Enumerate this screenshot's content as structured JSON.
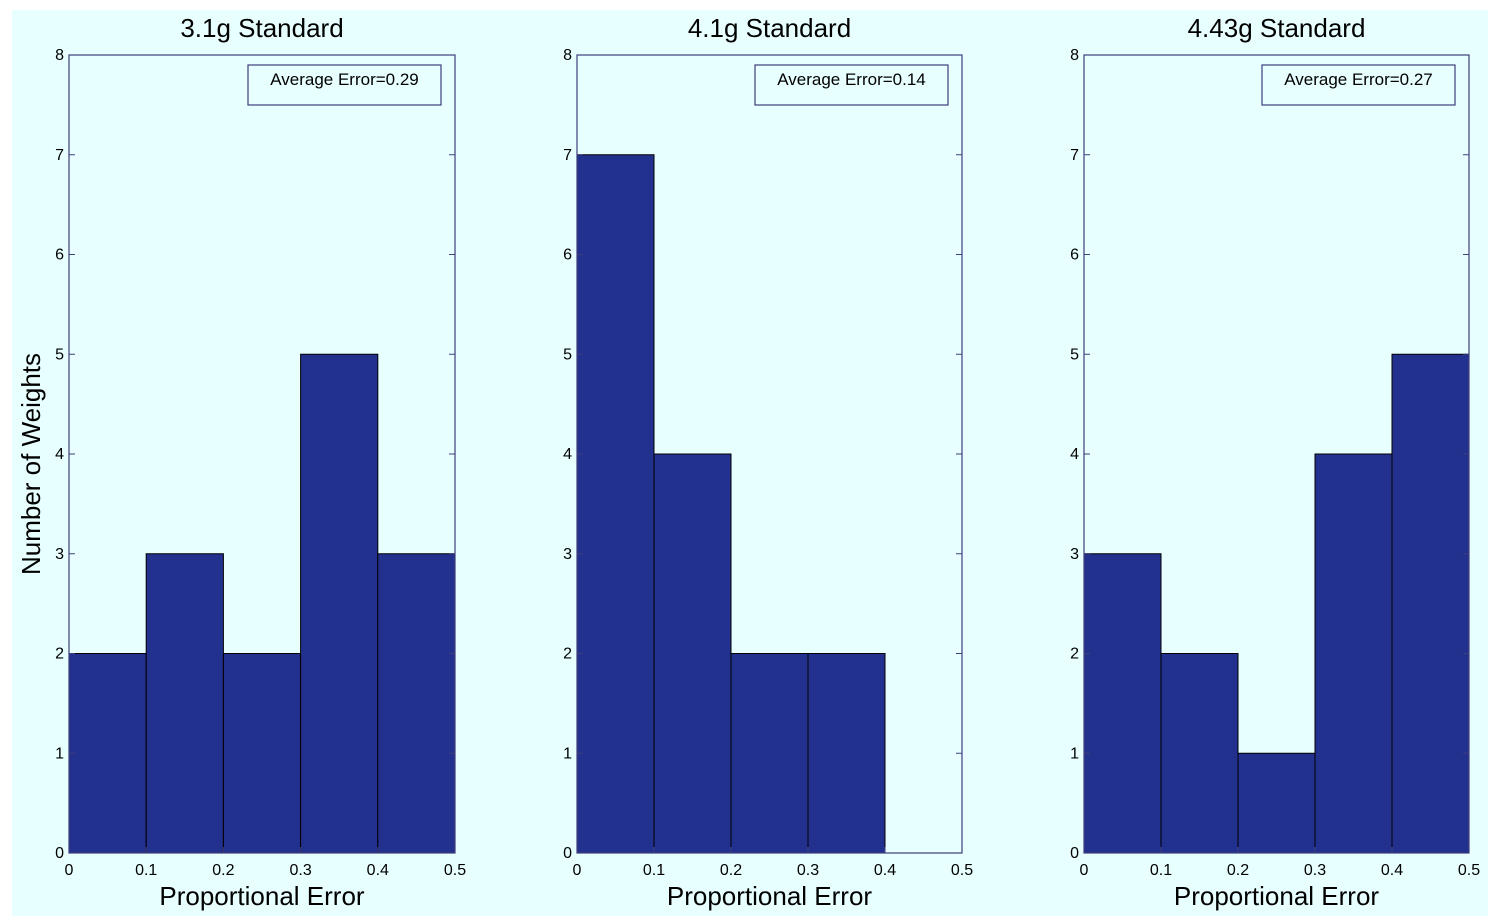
{
  "figure": {
    "shared_ylabel": "Number of Weights",
    "colors": {
      "figure_background": "#e8ffff",
      "bar_fill": "#23318e",
      "bar_edge": "#000000",
      "axis": "#3e3e7a",
      "annotation_box": "#3e3e7a"
    }
  },
  "chart_data": [
    {
      "type": "bar",
      "title": "3.1g Standard",
      "xlabel": "Proportional Error",
      "ylabel": "Number of Weights",
      "bin_edges": [
        0,
        0.1,
        0.2,
        0.3,
        0.4,
        0.5
      ],
      "values": [
        2,
        3,
        2,
        5,
        3
      ],
      "xlim": [
        0,
        0.5
      ],
      "ylim": [
        0,
        8
      ],
      "xticks": [
        "0",
        "0.1",
        "0.2",
        "0.3",
        "0.4",
        "0.5"
      ],
      "yticks": [
        "0",
        "1",
        "2",
        "3",
        "4",
        "5",
        "6",
        "7",
        "8"
      ],
      "annotation": "Average Error=0.29",
      "annotation_placement": "top-right",
      "grid": false
    },
    {
      "type": "bar",
      "title": "4.1g Standard",
      "xlabel": "Proportional Error",
      "ylabel": "",
      "bin_edges": [
        0,
        0.1,
        0.2,
        0.3,
        0.4,
        0.5
      ],
      "values": [
        7,
        4,
        2,
        2,
        0
      ],
      "xlim": [
        0,
        0.5
      ],
      "ylim": [
        0,
        8
      ],
      "xticks": [
        "0",
        "0.1",
        "0.2",
        "0.3",
        "0.4",
        "0.5"
      ],
      "yticks": [
        "0",
        "1",
        "2",
        "3",
        "4",
        "5",
        "6",
        "7",
        "8"
      ],
      "annotation": "Average Error=0.14",
      "annotation_placement": "top-right",
      "grid": false
    },
    {
      "type": "bar",
      "title": "4.43g Standard",
      "xlabel": "Proportional Error",
      "ylabel": "",
      "bin_edges": [
        0,
        0.1,
        0.2,
        0.3,
        0.4,
        0.5
      ],
      "values": [
        3,
        2,
        1,
        4,
        5
      ],
      "xlim": [
        0,
        0.5
      ],
      "ylim": [
        0,
        8
      ],
      "xticks": [
        "0",
        "0.1",
        "0.2",
        "0.3",
        "0.4",
        "0.5"
      ],
      "yticks": [
        "0",
        "1",
        "2",
        "3",
        "4",
        "5",
        "6",
        "7",
        "8"
      ],
      "annotation": "Average Error=0.27",
      "annotation_placement": "top-right",
      "grid": false
    }
  ]
}
